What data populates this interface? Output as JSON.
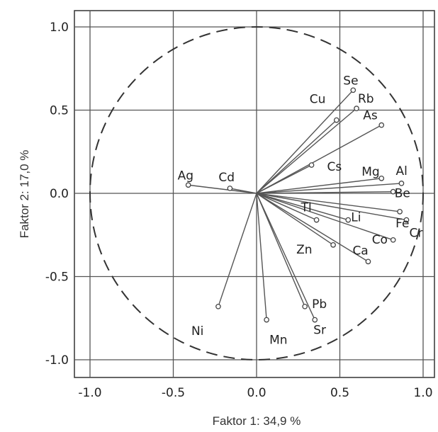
{
  "chart_data": {
    "type": "scatter",
    "subtype": "pca-loadings-biplot",
    "xlabel": "Faktor 1: 34,9 %",
    "ylabel": "Faktor 2: 17,0 %",
    "xlim": [
      -1.0,
      1.0
    ],
    "ylim": [
      -1.0,
      1.0
    ],
    "xticks": [
      "-1.0",
      "-0.5",
      "0.0",
      "0.5",
      "1.0"
    ],
    "yticks": [
      "1.0",
      "0.5",
      "0.0",
      "-0.5",
      "-1.0"
    ],
    "grid": true,
    "unit_circle": true,
    "points": [
      {
        "label": "Ag",
        "x": -0.41,
        "y": 0.05
      },
      {
        "label": "Cd",
        "x": -0.16,
        "y": 0.03
      },
      {
        "label": "Se",
        "x": 0.58,
        "y": 0.62
      },
      {
        "label": "Rb",
        "x": 0.6,
        "y": 0.51
      },
      {
        "label": "Cu",
        "x": 0.48,
        "y": 0.44
      },
      {
        "label": "As",
        "x": 0.75,
        "y": 0.41
      },
      {
        "label": "Cs",
        "x": 0.33,
        "y": 0.17
      },
      {
        "label": "Mg",
        "x": 0.75,
        "y": 0.09
      },
      {
        "label": "Al",
        "x": 0.87,
        "y": 0.06
      },
      {
        "label": "Be",
        "x": 0.82,
        "y": 0.01
      },
      {
        "label": "Fe",
        "x": 0.86,
        "y": -0.11
      },
      {
        "label": "Cr",
        "x": 0.9,
        "y": -0.16
      },
      {
        "label": "Li",
        "x": 0.55,
        "y": -0.16
      },
      {
        "label": "Co",
        "x": 0.82,
        "y": -0.28
      },
      {
        "label": "Tl",
        "x": 0.36,
        "y": -0.16
      },
      {
        "label": "Zn",
        "x": 0.46,
        "y": -0.31
      },
      {
        "label": "Ca",
        "x": 0.67,
        "y": -0.41
      },
      {
        "label": "Pb",
        "x": 0.29,
        "y": -0.68
      },
      {
        "label": "Sr",
        "x": 0.35,
        "y": -0.76
      },
      {
        "label": "Mn",
        "x": 0.06,
        "y": -0.76
      },
      {
        "label": "Ni",
        "x": -0.23,
        "y": -0.68
      }
    ]
  }
}
